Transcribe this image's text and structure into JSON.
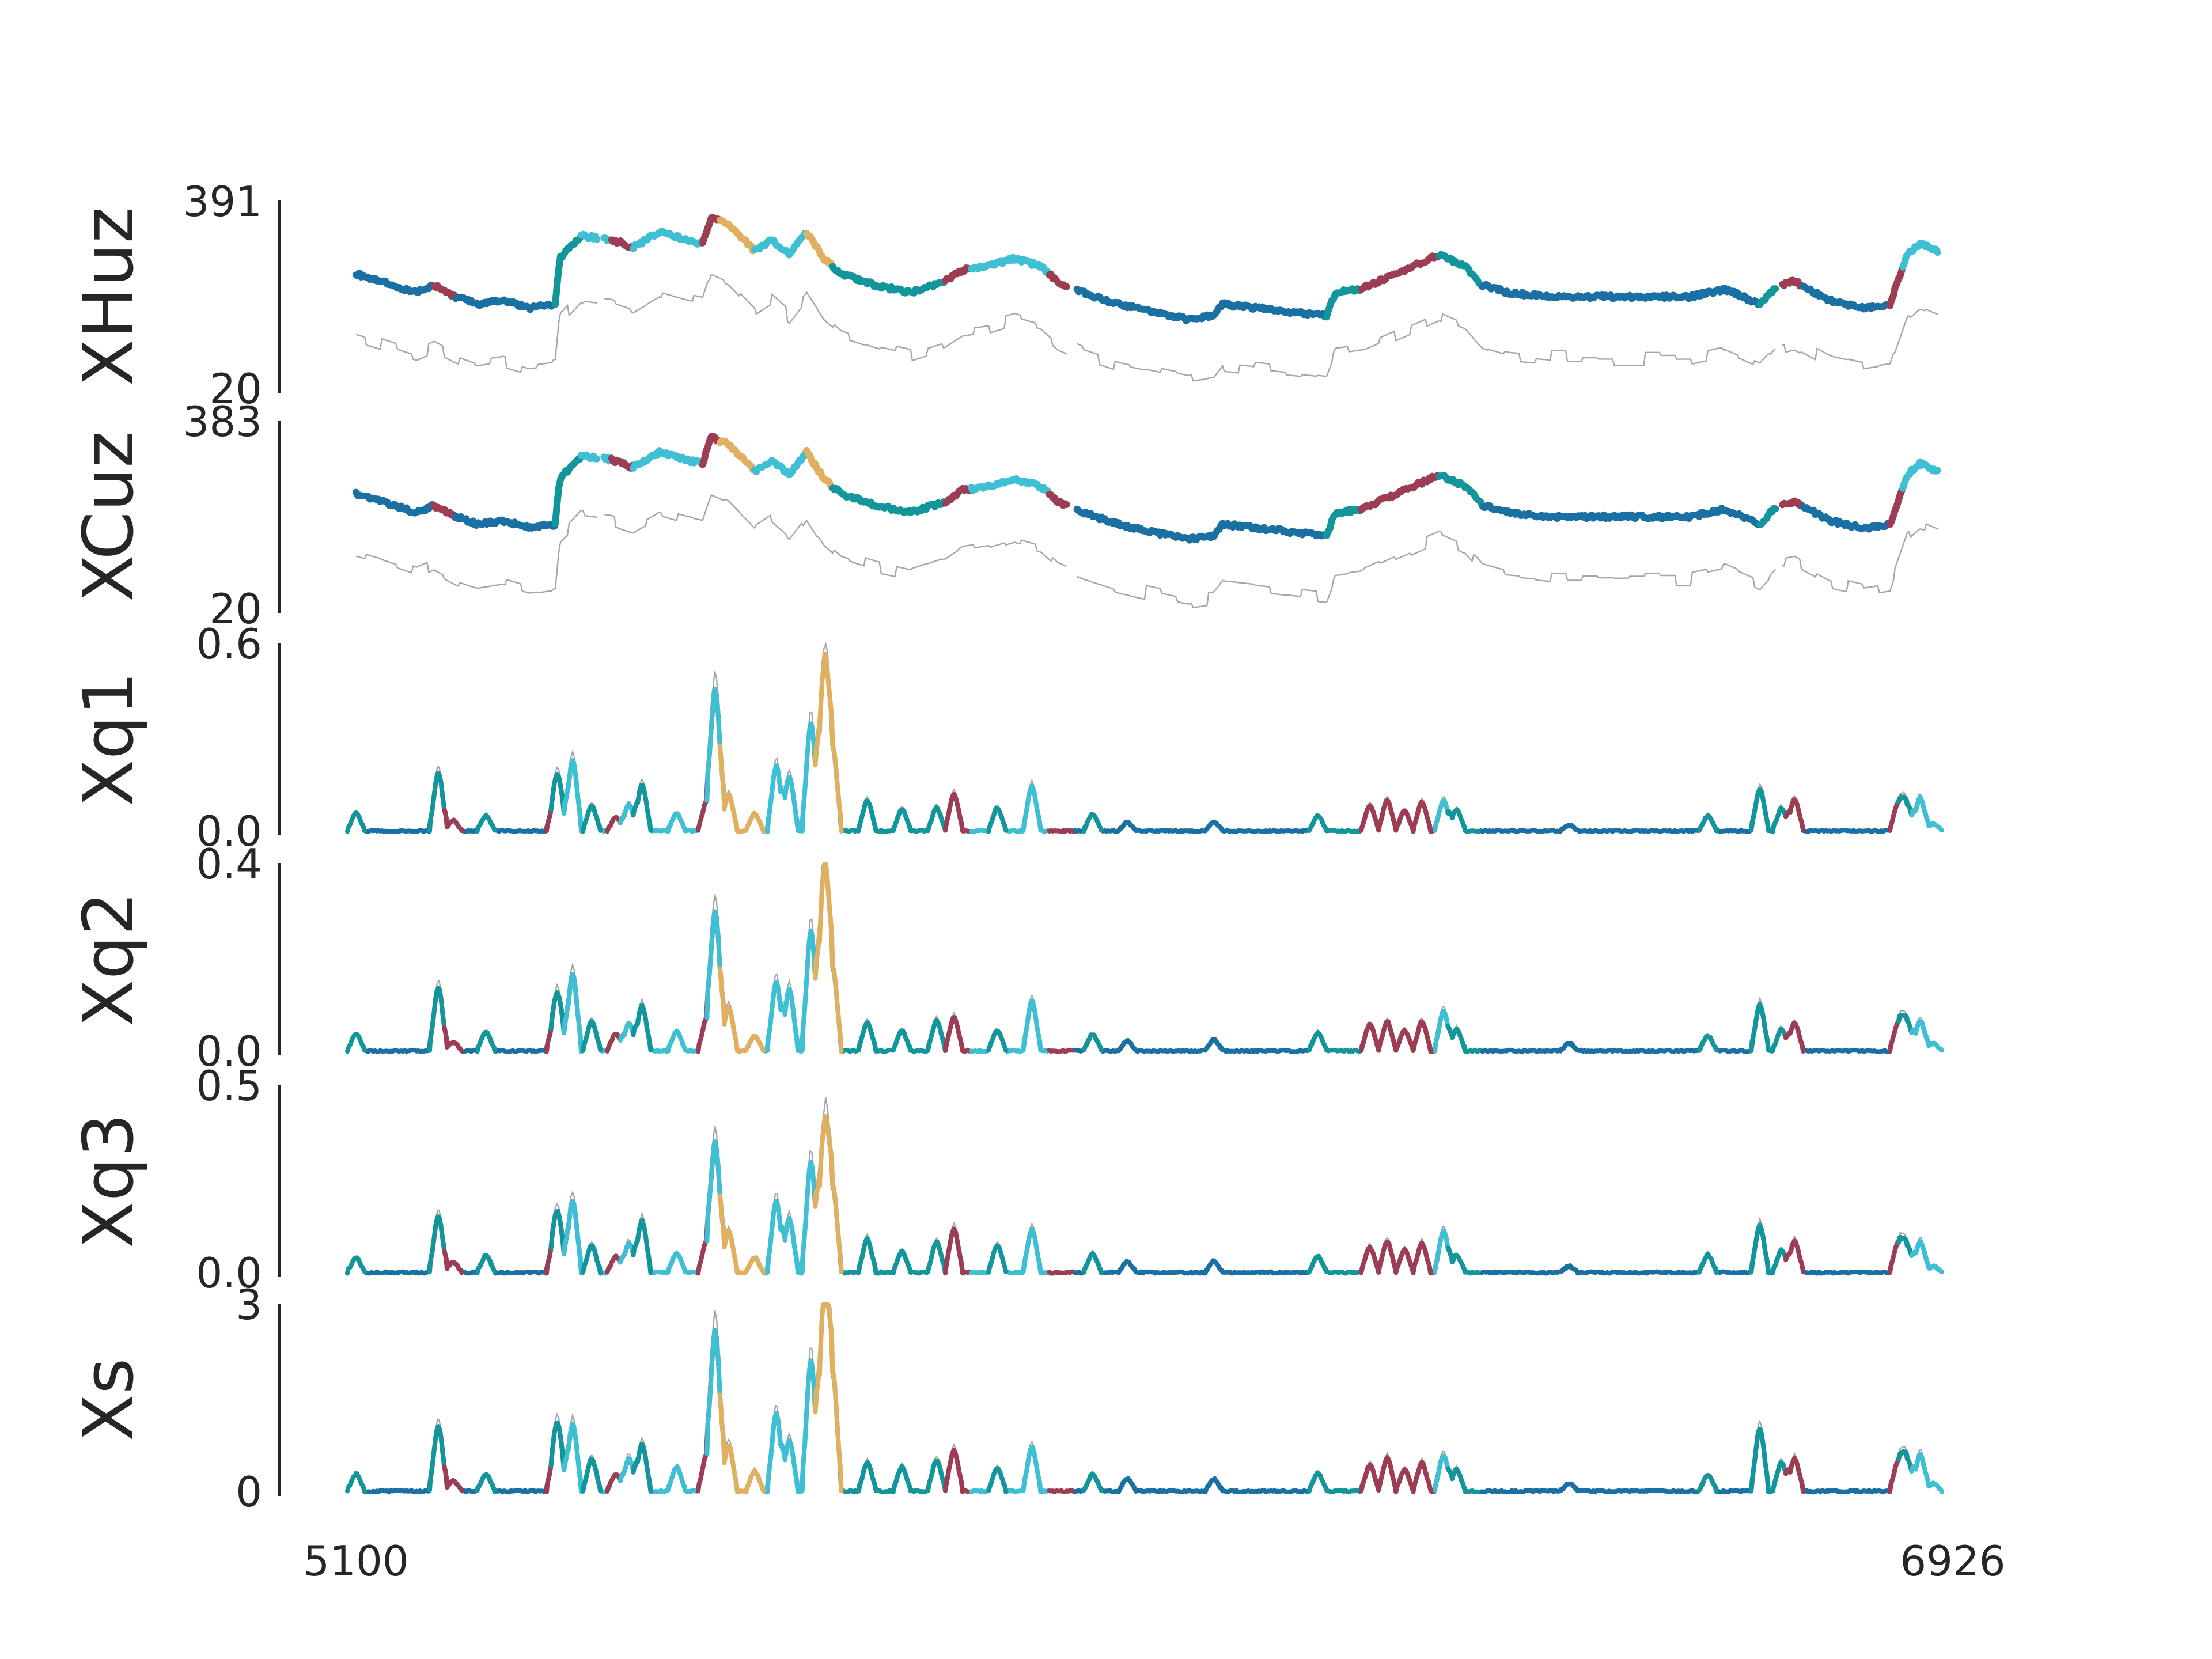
{
  "chart_data": {
    "type": "line",
    "xlim": [
      5100,
      6926
    ],
    "x_ticks": [
      "5100",
      "6926"
    ],
    "state_colors": {
      "navy": "#1a6fa3",
      "teal": "#12969c",
      "crimson": "#9c3d54",
      "cyan": "#3fbfd4",
      "gold": "#e0b060",
      "gray": "#a6a6a6"
    },
    "panels": [
      {
        "label": "XHuz",
        "ylim": [
          20,
          391
        ],
        "ytick_top": "391",
        "ytick_bottom": "20",
        "kind": "level",
        "base": 260,
        "amp": 70,
        "gray_offset": -120
      },
      {
        "label": "XCuz",
        "ylim": [
          20,
          383
        ],
        "ytick_top": "383",
        "ytick_bottom": "20",
        "kind": "level",
        "base": 255,
        "amp": 70,
        "gray_offset": -118
      },
      {
        "label": "Xq1",
        "ylim": [
          0.0,
          0.6
        ],
        "ytick_top": "0.6",
        "ytick_bottom": "0.0",
        "kind": "spike",
        "peak": 0.5
      },
      {
        "label": "Xq2",
        "ylim": [
          0.0,
          0.4
        ],
        "ytick_top": "0.4",
        "ytick_bottom": "0.0",
        "kind": "spike",
        "peak": 0.35
      },
      {
        "label": "Xq3",
        "ylim": [
          0.0,
          0.5
        ],
        "ytick_top": "0.5",
        "ytick_bottom": "0.0",
        "kind": "spike",
        "peak": 0.45
      },
      {
        "label": "Xs",
        "ylim": [
          0,
          3
        ],
        "ytick_top": "3",
        "ytick_bottom": "0",
        "kind": "spike",
        "peak": 2.9
      }
    ],
    "segments": [
      {
        "x0": 5100,
        "x1": 5190,
        "state": "navy"
      },
      {
        "x0": 5190,
        "x1": 5215,
        "state": "crimson"
      },
      {
        "x0": 5215,
        "x1": 5330,
        "state": "navy"
      },
      {
        "x0": 5330,
        "x1": 5360,
        "state": "teal"
      },
      {
        "x0": 5360,
        "x1": 5395,
        "state": "cyan"
      },
      {
        "x0": 5395,
        "x1": 5420,
        "state": "crimson"
      },
      {
        "x0": 5420,
        "x1": 5500,
        "state": "cyan"
      },
      {
        "x0": 5500,
        "x1": 5520,
        "state": "crimson"
      },
      {
        "x0": 5520,
        "x1": 5560,
        "state": "gold"
      },
      {
        "x0": 5560,
        "x1": 5620,
        "state": "cyan"
      },
      {
        "x0": 5620,
        "x1": 5650,
        "state": "gold"
      },
      {
        "x0": 5650,
        "x1": 5780,
        "state": "teal"
      },
      {
        "x0": 5780,
        "x1": 5810,
        "state": "crimson"
      },
      {
        "x0": 5810,
        "x1": 5900,
        "state": "cyan"
      },
      {
        "x0": 5900,
        "x1": 5930,
        "state": "crimson"
      },
      {
        "x0": 5930,
        "x1": 6220,
        "state": "navy"
      },
      {
        "x0": 6220,
        "x1": 6260,
        "state": "teal"
      },
      {
        "x0": 6260,
        "x1": 6350,
        "state": "crimson"
      },
      {
        "x0": 6350,
        "x1": 6400,
        "state": "teal"
      },
      {
        "x0": 6400,
        "x1": 6720,
        "state": "navy"
      },
      {
        "x0": 6720,
        "x1": 6740,
        "state": "teal"
      },
      {
        "x0": 6740,
        "x1": 6770,
        "state": "crimson"
      },
      {
        "x0": 6770,
        "x1": 6870,
        "state": "navy"
      },
      {
        "x0": 6870,
        "x1": 6885,
        "state": "crimson"
      },
      {
        "x0": 6885,
        "x1": 6926,
        "state": "cyan"
      }
    ],
    "level_curve": [
      [
        5100,
        0.62
      ],
      [
        5130,
        0.58
      ],
      [
        5170,
        0.52
      ],
      [
        5190,
        0.56
      ],
      [
        5215,
        0.5
      ],
      [
        5240,
        0.46
      ],
      [
        5270,
        0.48
      ],
      [
        5300,
        0.44
      ],
      [
        5330,
        0.46
      ],
      [
        5335,
        0.7
      ],
      [
        5360,
        0.82
      ],
      [
        5395,
        0.8
      ],
      [
        5420,
        0.76
      ],
      [
        5450,
        0.84
      ],
      [
        5480,
        0.8
      ],
      [
        5500,
        0.78
      ],
      [
        5510,
        0.92
      ],
      [
        5530,
        0.88
      ],
      [
        5560,
        0.74
      ],
      [
        5580,
        0.8
      ],
      [
        5600,
        0.72
      ],
      [
        5620,
        0.84
      ],
      [
        5640,
        0.7
      ],
      [
        5660,
        0.62
      ],
      [
        5700,
        0.56
      ],
      [
        5740,
        0.52
      ],
      [
        5780,
        0.58
      ],
      [
        5800,
        0.64
      ],
      [
        5830,
        0.66
      ],
      [
        5860,
        0.7
      ],
      [
        5890,
        0.66
      ],
      [
        5910,
        0.58
      ],
      [
        5940,
        0.52
      ],
      [
        5980,
        0.46
      ],
      [
        6020,
        0.42
      ],
      [
        6060,
        0.38
      ],
      [
        6090,
        0.4
      ],
      [
        6100,
        0.46
      ],
      [
        6140,
        0.44
      ],
      [
        6220,
        0.4
      ],
      [
        6230,
        0.52
      ],
      [
        6260,
        0.54
      ],
      [
        6300,
        0.62
      ],
      [
        6350,
        0.72
      ],
      [
        6380,
        0.66
      ],
      [
        6400,
        0.56
      ],
      [
        6430,
        0.52
      ],
      [
        6480,
        0.5
      ],
      [
        6560,
        0.5
      ],
      [
        6640,
        0.5
      ],
      [
        6680,
        0.54
      ],
      [
        6700,
        0.5
      ],
      [
        6720,
        0.46
      ],
      [
        6740,
        0.56
      ],
      [
        6760,
        0.58
      ],
      [
        6800,
        0.48
      ],
      [
        6840,
        0.44
      ],
      [
        6870,
        0.46
      ],
      [
        6890,
        0.72
      ],
      [
        6905,
        0.78
      ],
      [
        6926,
        0.74
      ]
    ],
    "spikes": [
      [
        5100,
        0.1,
        "teal"
      ],
      [
        5195,
        0.38,
        "teal"
      ],
      [
        5212,
        0.06,
        "crimson"
      ],
      [
        5250,
        0.1,
        "teal"
      ],
      [
        5330,
        0.2,
        "crimson"
      ],
      [
        5335,
        0.18,
        "teal"
      ],
      [
        5350,
        0.42,
        "cyan"
      ],
      [
        5372,
        0.16,
        "teal"
      ],
      [
        5400,
        0.1,
        "crimson"
      ],
      [
        5415,
        0.18,
        "cyan"
      ],
      [
        5430,
        0.3,
        "teal"
      ],
      [
        5470,
        0.12,
        "cyan"
      ],
      [
        5505,
        0.18,
        "crimson"
      ],
      [
        5515,
        0.8,
        "cyan"
      ],
      [
        5530,
        0.24,
        "gold"
      ],
      [
        5560,
        0.1,
        "gold"
      ],
      [
        5585,
        0.38,
        "cyan"
      ],
      [
        5600,
        0.32,
        "cyan"
      ],
      [
        5625,
        0.7,
        "cyan"
      ],
      [
        5640,
        0.96,
        "gold"
      ],
      [
        5650,
        0.58,
        "gold"
      ],
      [
        5690,
        0.18,
        "teal"
      ],
      [
        5730,
        0.12,
        "teal"
      ],
      [
        5770,
        0.16,
        "teal"
      ],
      [
        5790,
        0.22,
        "crimson"
      ],
      [
        5840,
        0.14,
        "teal"
      ],
      [
        5880,
        0.28,
        "cyan"
      ],
      [
        5950,
        0.1,
        "teal"
      ],
      [
        5990,
        0.06,
        "navy"
      ],
      [
        6090,
        0.06,
        "navy"
      ],
      [
        6210,
        0.1,
        "teal"
      ],
      [
        6270,
        0.16,
        "crimson"
      ],
      [
        6290,
        0.18,
        "crimson"
      ],
      [
        6310,
        0.12,
        "crimson"
      ],
      [
        6330,
        0.16,
        "crimson"
      ],
      [
        6355,
        0.22,
        "cyan"
      ],
      [
        6370,
        0.12,
        "teal"
      ],
      [
        6500,
        0.04,
        "navy"
      ],
      [
        6660,
        0.1,
        "teal"
      ],
      [
        6720,
        0.3,
        "teal"
      ],
      [
        6745,
        0.14,
        "teal"
      ],
      [
        6760,
        0.18,
        "crimson"
      ],
      [
        6880,
        0.16,
        "crimson"
      ],
      [
        6890,
        0.18,
        "teal"
      ],
      [
        6905,
        0.2,
        "cyan"
      ],
      [
        6920,
        0.04,
        "cyan"
      ]
    ]
  }
}
